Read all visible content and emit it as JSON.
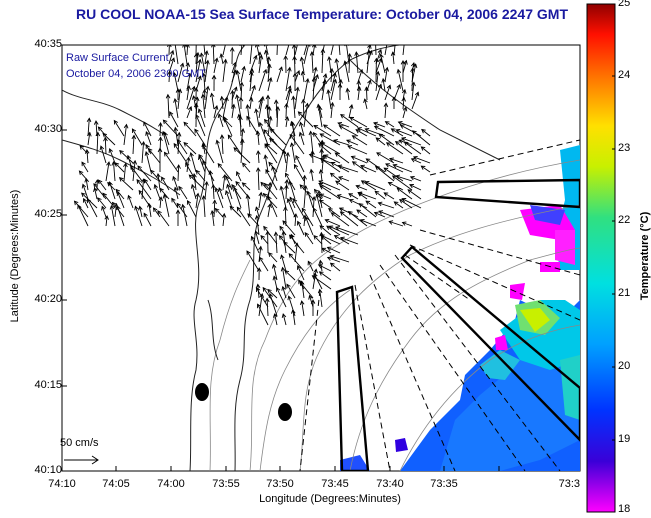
{
  "title": "RU COOL  NOAA-15  Sea Surface Temperature:  October 04, 2006 2247 GMT",
  "legend": {
    "line1": "Raw Surface Current",
    "line2": "October 04, 2006 2300 GMT"
  },
  "axes": {
    "ylabel": "Latitude (Degrees:Minutes)",
    "xlabel": "Longitude (Degrees:Minutes)",
    "y_ticks": [
      "40:35",
      "40:30",
      "40:25",
      "40:20",
      "40:15",
      "40:10"
    ],
    "x_ticks": [
      "74:10",
      "74:05",
      "74:00",
      "73:55",
      "73:50",
      "73:45",
      "73:40",
      "73:35",
      "73:3"
    ]
  },
  "colorbar": {
    "label": "Temperature (°C)",
    "ticks": [
      "25",
      "24",
      "23",
      "22",
      "21",
      "20",
      "19",
      "18"
    ],
    "range": [
      18,
      25
    ]
  },
  "scale": {
    "label": "50 cm/s"
  },
  "colors": {
    "title": "#1a1aa0",
    "vectors": "#000000",
    "coast": "#222222",
    "bathymetry": "#888888"
  }
}
